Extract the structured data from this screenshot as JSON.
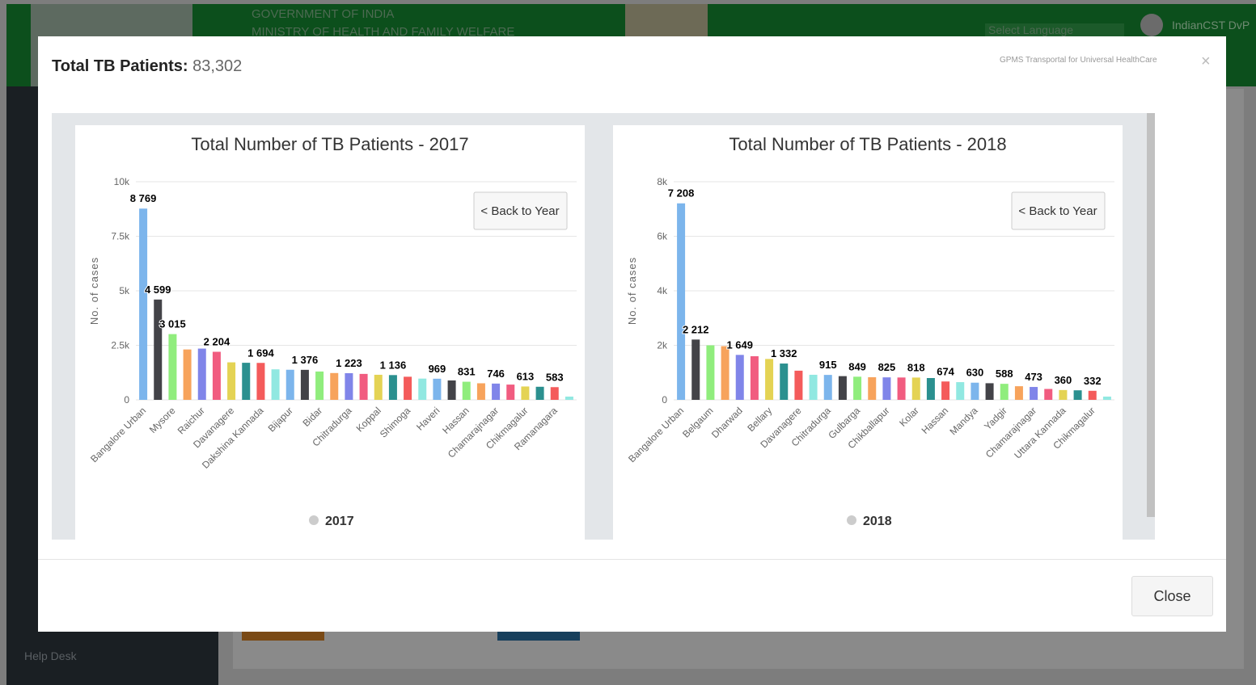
{
  "background": {
    "header_line1": "GOVERNMENT OF INDIA",
    "header_line2": "MINISTRY OF HEALTH AND FAMILY WELFARE",
    "language": "Select Language",
    "user": "IndianCST DvP",
    "help_desk": "Help Desk"
  },
  "modal": {
    "title_label": "Total TB Patients:",
    "title_value": "83,302",
    "brand": "GPMS Transportal for Universal HealthCare",
    "close_icon": "×",
    "close_button": "Close"
  },
  "chart_data": [
    {
      "type": "bar",
      "title": "Total Number of TB Patients - 2017",
      "y_label": "No. of cases",
      "button": "< Back to Year",
      "categories": [
        "Bangalore Urban",
        null,
        "Mysore",
        null,
        "Raichur",
        null,
        "Davanagere",
        null,
        "Dakshina Kannada",
        null,
        "Bijapur",
        null,
        "Bidar",
        null,
        "Chitradurga",
        null,
        "Koppal",
        null,
        "Shimoga",
        null,
        "Haveri",
        null,
        "Hassan",
        null,
        "Chamarajnagar",
        null,
        "Chikmagalur",
        null,
        "Ramanagara",
        null
      ],
      "series": [
        {
          "name": "2017",
          "values": [
            8769,
            4599,
            3015,
            2310,
            2350,
            2204,
            1720,
            1700,
            1694,
            1400,
            1380,
            1376,
            1300,
            1230,
            1223,
            1190,
            1150,
            1136,
            1060,
            975,
            969,
            890,
            831,
            760,
            746,
            700,
            613,
            600,
            583,
            150
          ],
          "value_labels": [
            "8 769",
            "4 599",
            "3 015",
            null,
            null,
            "2 204",
            null,
            null,
            "1 694",
            null,
            null,
            "1 376",
            null,
            null,
            "1 223",
            null,
            null,
            "1 136",
            null,
            null,
            "969",
            null,
            "831",
            null,
            "746",
            null,
            "613",
            null,
            "583",
            null
          ]
        }
      ],
      "colors": [
        "#7cb5ec",
        "#434348",
        "#90ed7d",
        "#f7a35c",
        "#8085e9",
        "#f15c80",
        "#e4d354",
        "#2b908f",
        "#f45b5b",
        "#91e8e1"
      ],
      "legend_color": "#cccccc",
      "ylim": [
        0,
        10000
      ],
      "yticks": [
        0,
        {
          "value": 2500,
          "label": "2.5k"
        },
        {
          "value": 5000,
          "label": "5k"
        },
        {
          "value": 7500,
          "label": "7.5k"
        },
        {
          "value": 10000,
          "label": "10k"
        }
      ],
      "grid": true
    },
    {
      "type": "bar",
      "title": "Total Number of TB Patients - 2018",
      "y_label": "No. of cases",
      "button": "< Back to Year",
      "categories": [
        "Bangalore Urban",
        null,
        "Belgaum",
        null,
        "Dharwad",
        null,
        "Bellary",
        null,
        "Davanagere",
        null,
        "Chitradurga",
        null,
        "Gulbarga",
        null,
        "Chikballapur",
        null,
        "Kolar",
        null,
        "Hassan",
        null,
        "Mandya",
        null,
        "Yadgir",
        null,
        "Chamarajnagar",
        null,
        "Uttara Kannada",
        null,
        "Chikmagalur",
        null
      ],
      "series": [
        {
          "name": "2018",
          "values": [
            7208,
            2212,
            2000,
            1970,
            1649,
            1600,
            1500,
            1332,
            1070,
            920,
            915,
            870,
            849,
            830,
            825,
            820,
            818,
            800,
            674,
            650,
            630,
            610,
            588,
            500,
            473,
            400,
            360,
            350,
            332,
            120
          ],
          "value_labels": [
            "7 208",
            "2 212",
            null,
            null,
            "1 649",
            null,
            null,
            "1 332",
            null,
            null,
            "915",
            null,
            "849",
            null,
            "825",
            null,
            "818",
            null,
            "674",
            null,
            "630",
            null,
            "588",
            null,
            "473",
            null,
            "360",
            null,
            "332",
            null
          ]
        }
      ],
      "colors": [
        "#7cb5ec",
        "#434348",
        "#90ed7d",
        "#f7a35c",
        "#8085e9",
        "#f15c80",
        "#e4d354",
        "#2b908f",
        "#f45b5b",
        "#91e8e1"
      ],
      "legend_color": "#cccccc",
      "ylim": [
        0,
        8000
      ],
      "yticks": [
        0,
        {
          "value": 2000,
          "label": "2k"
        },
        {
          "value": 4000,
          "label": "4k"
        },
        {
          "value": 6000,
          "label": "6k"
        },
        {
          "value": 8000,
          "label": "8k"
        }
      ],
      "grid": true
    }
  ]
}
